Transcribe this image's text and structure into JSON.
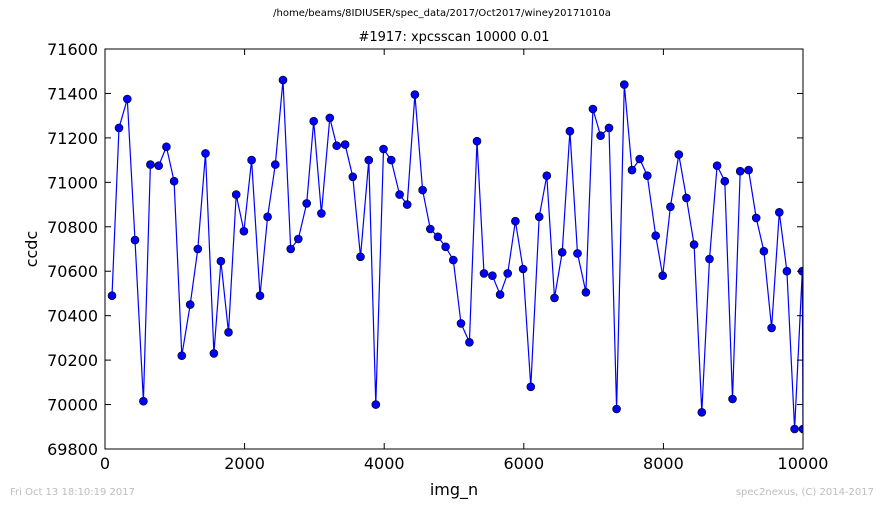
{
  "header": {
    "suptitle": "/home/beams/8IDIUSER/spec_data/2017/Oct2017/winey20171010a"
  },
  "footer": {
    "timestamp": "Fri Oct 13 18:10:19 2017",
    "credit": "spec2nexus, (C) 2014-2017"
  },
  "chart_data": {
    "type": "line",
    "title": "#1917: xpcsscan 10000 0.01",
    "xlabel": "img_n",
    "ylabel": "ccdc",
    "xlim": [
      0,
      10000
    ],
    "ylim": [
      69800,
      71600
    ],
    "xticks": [
      "0",
      "2000",
      "4000",
      "6000",
      "8000",
      "10000"
    ],
    "yticks": [
      "69800",
      "70000",
      "70200",
      "70400",
      "70600",
      "70800",
      "71000",
      "71200",
      "71400",
      "71600"
    ],
    "grid": false,
    "line_color": "#0000ff",
    "marker_face_color": "#0000ff",
    "series": [
      {
        "x": [
          100,
          200,
          320,
          430,
          550,
          650,
          770,
          880,
          990,
          1100,
          1220,
          1330,
          1440,
          1560,
          1660,
          1770,
          1880,
          1990,
          2100,
          2220,
          2330,
          2440,
          2550,
          2660,
          2770,
          2890,
          2990,
          3100,
          3220,
          3320,
          3440,
          3550,
          3660,
          3780,
          3880,
          3990,
          4100,
          4220,
          4330,
          4440,
          4550,
          4660,
          4770,
          4880,
          4990,
          5100,
          5220,
          5330,
          5430,
          5550,
          5660,
          5770,
          5880,
          5990,
          6100,
          6220,
          6330,
          6440,
          6550,
          6660,
          6770,
          6890,
          6990,
          7100,
          7220,
          7330,
          7440,
          7550,
          7660,
          7770,
          7890,
          7990,
          8100,
          8220,
          8330,
          8440,
          8550,
          8660,
          8770,
          8880,
          8990,
          9100,
          9220,
          9330,
          9440,
          9550,
          9660,
          9770,
          9880,
          9990,
          10000
        ],
        "y": [
          70490,
          71245,
          71375,
          70740,
          70015,
          71080,
          71075,
          71160,
          71005,
          70220,
          70450,
          70700,
          71130,
          70230,
          70645,
          70325,
          70945,
          70780,
          71100,
          70490,
          70845,
          71080,
          71460,
          70700,
          70745,
          70905,
          71275,
          70860,
          71290,
          71165,
          71170,
          71025,
          70665,
          71100,
          70000,
          71150,
          71100,
          70945,
          70900,
          71395,
          70965,
          70790,
          70755,
          70710,
          70650,
          70365,
          70280,
          71185,
          70590,
          70580,
          70495,
          70590,
          70825,
          70610,
          70080,
          70845,
          71030,
          70480,
          70685,
          71230,
          70680,
          70505,
          71330,
          71210,
          71245,
          69980,
          71440,
          71055,
          71105,
          71030,
          70760,
          70580,
          70890,
          71125,
          70930,
          70720,
          69965,
          70655,
          71075,
          71005,
          70025,
          71050,
          71055,
          70840,
          70690,
          70345,
          70865,
          70600,
          69890,
          70600,
          69890
        ]
      }
    ]
  }
}
